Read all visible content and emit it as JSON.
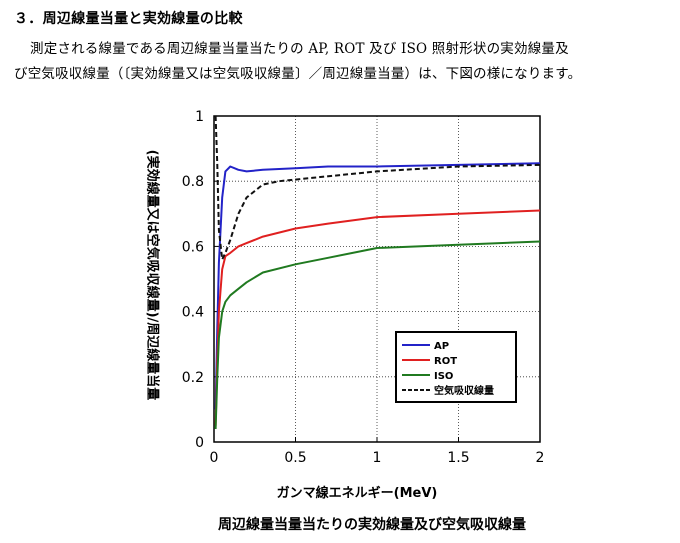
{
  "section": {
    "heading": "３．周辺線量当量と実効線量の比較"
  },
  "paragraph": {
    "line1": "測定される線量である周辺線量当量当たりの AP, ROT 及び ISO 照射形状の実効線量及",
    "line2": "び空気吸収線量（〔実効線量又は空気吸収線量〕／周辺線量当量）は、下図の様になります。"
  },
  "chart_data": {
    "type": "line",
    "title": "周辺線量当量当たりの実効線量及び空気吸収線量",
    "xlabel": "ガンマ線エネルギー(MeV)",
    "ylabel": "(実効線量又は空気吸収線量)/周辺線量当量",
    "xlim": [
      0,
      2
    ],
    "ylim": [
      0,
      1
    ],
    "xticks": [
      "0",
      "0.5",
      "1",
      "1.5",
      "2"
    ],
    "yticks": [
      "0",
      "0.2",
      "0.4",
      "0.6",
      "0.8",
      "1"
    ],
    "grid": true,
    "legend_position": "lower-right",
    "series": [
      {
        "name": "AP",
        "color": "#2323c8",
        "style": "solid",
        "x": [
          0.01,
          0.02,
          0.03,
          0.05,
          0.07,
          0.1,
          0.15,
          0.2,
          0.3,
          0.5,
          0.7,
          1.0,
          1.5,
          2.0
        ],
        "y": [
          0.1,
          0.35,
          0.55,
          0.75,
          0.83,
          0.845,
          0.835,
          0.83,
          0.835,
          0.84,
          0.845,
          0.845,
          0.85,
          0.855
        ]
      },
      {
        "name": "ROT",
        "color": "#e02020",
        "style": "solid",
        "x": [
          0.01,
          0.02,
          0.03,
          0.05,
          0.07,
          0.1,
          0.15,
          0.2,
          0.3,
          0.5,
          0.7,
          1.0,
          1.5,
          2.0
        ],
        "y": [
          0.05,
          0.25,
          0.4,
          0.53,
          0.57,
          0.58,
          0.6,
          0.61,
          0.63,
          0.655,
          0.67,
          0.69,
          0.7,
          0.71
        ]
      },
      {
        "name": "ISO",
        "color": "#207a20",
        "style": "solid",
        "x": [
          0.01,
          0.02,
          0.03,
          0.05,
          0.07,
          0.1,
          0.15,
          0.2,
          0.3,
          0.5,
          0.7,
          1.0,
          1.5,
          2.0
        ],
        "y": [
          0.04,
          0.2,
          0.32,
          0.4,
          0.43,
          0.45,
          0.47,
          0.49,
          0.52,
          0.545,
          0.565,
          0.595,
          0.605,
          0.615
        ]
      },
      {
        "name": "空気吸収線量",
        "color": "#111111",
        "style": "dashed",
        "x": [
          0.01,
          0.02,
          0.03,
          0.05,
          0.07,
          0.1,
          0.15,
          0.2,
          0.3,
          0.4,
          0.6,
          1.0,
          1.5,
          2.0
        ],
        "y": [
          1.0,
          0.85,
          0.65,
          0.56,
          0.58,
          0.62,
          0.7,
          0.75,
          0.79,
          0.8,
          0.81,
          0.83,
          0.845,
          0.85
        ]
      }
    ]
  }
}
